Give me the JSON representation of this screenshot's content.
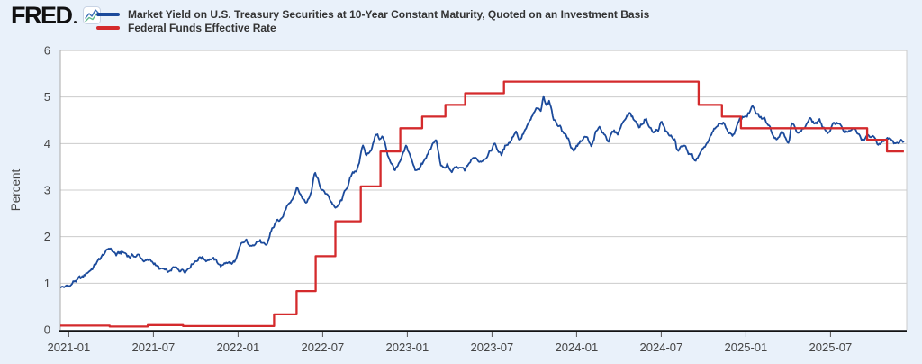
{
  "header": {
    "logo_text": "FRED",
    "logo_icon": "fred-sparkline-icon"
  },
  "chart_data": {
    "type": "line",
    "title": "",
    "xlabel": "",
    "ylabel": "Percent",
    "ylim": [
      0,
      6
    ],
    "grid": true,
    "legend_position": "top",
    "x_domain_months": [
      -0.6,
      59.4
    ],
    "x_domain_note": "months measured from 2021-01-01",
    "y_ticks": [
      0,
      1,
      2,
      3,
      4,
      5,
      6
    ],
    "x_ticks": [
      {
        "m": 0,
        "label": "2021-01"
      },
      {
        "m": 6,
        "label": "2021-07"
      },
      {
        "m": 12,
        "label": "2022-01"
      },
      {
        "m": 18,
        "label": "2022-07"
      },
      {
        "m": 24,
        "label": "2023-01"
      },
      {
        "m": 30,
        "label": "2023-07"
      },
      {
        "m": 36,
        "label": "2024-01"
      },
      {
        "m": 42,
        "label": "2024-07"
      },
      {
        "m": 48,
        "label": "2025-01"
      },
      {
        "m": 54,
        "label": "2025-07"
      }
    ],
    "series": [
      {
        "name": "Market Yield on U.S. Treasury Securities at 10-Year Constant Maturity, Quoted on an Investment Basis",
        "color": "#1b4a9b",
        "style": "daily",
        "anchors": [
          [
            -0.6,
            0.93
          ],
          [
            0,
            0.92
          ],
          [
            0.4,
            1.04
          ],
          [
            1,
            1.1
          ],
          [
            1.6,
            1.3
          ],
          [
            2,
            1.45
          ],
          [
            2.5,
            1.62
          ],
          [
            2.95,
            1.74
          ],
          [
            3.4,
            1.6
          ],
          [
            3.8,
            1.65
          ],
          [
            4.3,
            1.58
          ],
          [
            4.9,
            1.6
          ],
          [
            5.4,
            1.48
          ],
          [
            6,
            1.45
          ],
          [
            6.4,
            1.3
          ],
          [
            6.75,
            1.25
          ],
          [
            7.1,
            1.18
          ],
          [
            7.4,
            1.29
          ],
          [
            7.8,
            1.26
          ],
          [
            8.3,
            1.31
          ],
          [
            8.8,
            1.48
          ],
          [
            9.3,
            1.61
          ],
          [
            9.7,
            1.54
          ],
          [
            10.1,
            1.58
          ],
          [
            10.5,
            1.45
          ],
          [
            10.9,
            1.36
          ],
          [
            11.2,
            1.48
          ],
          [
            11.6,
            1.41
          ],
          [
            11.9,
            1.52
          ],
          [
            12.2,
            1.77
          ],
          [
            12.6,
            1.87
          ],
          [
            12.9,
            1.73
          ],
          [
            13.3,
            1.95
          ],
          [
            13.6,
            1.93
          ],
          [
            14,
            1.72
          ],
          [
            14.4,
            2.14
          ],
          [
            14.8,
            2.35
          ],
          [
            15.1,
            2.32
          ],
          [
            15.5,
            2.66
          ],
          [
            15.9,
            2.89
          ],
          [
            16.15,
            3.12
          ],
          [
            16.5,
            2.89
          ],
          [
            16.85,
            2.74
          ],
          [
            17.2,
            3.05
          ],
          [
            17.45,
            3.47
          ],
          [
            17.75,
            3.16
          ],
          [
            17.95,
            2.98
          ],
          [
            18.2,
            2.93
          ],
          [
            18.55,
            2.78
          ],
          [
            19,
            2.6
          ],
          [
            19.4,
            2.79
          ],
          [
            19.7,
            3.04
          ],
          [
            20,
            3.26
          ],
          [
            20.4,
            3.41
          ],
          [
            20.85,
            3.94
          ],
          [
            21.1,
            3.72
          ],
          [
            21.5,
            3.95
          ],
          [
            21.8,
            4.23
          ],
          [
            22.05,
            4.1
          ],
          [
            22.25,
            4.16
          ],
          [
            22.6,
            3.77
          ],
          [
            23.1,
            3.44
          ],
          [
            23.5,
            3.55
          ],
          [
            23.9,
            3.88
          ],
          [
            24.2,
            3.72
          ],
          [
            24.55,
            3.4
          ],
          [
            24.9,
            3.52
          ],
          [
            25.3,
            3.65
          ],
          [
            25.7,
            3.92
          ],
          [
            26.05,
            4.05
          ],
          [
            26.35,
            3.55
          ],
          [
            26.6,
            3.41
          ],
          [
            26.85,
            3.56
          ],
          [
            27.1,
            3.35
          ],
          [
            27.45,
            3.44
          ],
          [
            27.75,
            3.42
          ],
          [
            28.1,
            3.38
          ],
          [
            28.4,
            3.56
          ],
          [
            28.8,
            3.7
          ],
          [
            29.1,
            3.64
          ],
          [
            29.5,
            3.74
          ],
          [
            29.9,
            3.84
          ],
          [
            30.2,
            4.02
          ],
          [
            30.5,
            3.83
          ],
          [
            30.7,
            3.76
          ],
          [
            31,
            3.96
          ],
          [
            31.35,
            4.1
          ],
          [
            31.7,
            4.31
          ],
          [
            31.95,
            4.1
          ],
          [
            32.3,
            4.28
          ],
          [
            32.65,
            4.42
          ],
          [
            32.95,
            4.6
          ],
          [
            33.2,
            4.72
          ],
          [
            33.45,
            4.62
          ],
          [
            33.65,
            4.96
          ],
          [
            33.85,
            4.85
          ],
          [
            34.05,
            4.92
          ],
          [
            34.35,
            4.57
          ],
          [
            34.6,
            4.44
          ],
          [
            34.85,
            4.4
          ],
          [
            35.05,
            4.24
          ],
          [
            35.4,
            4.12
          ],
          [
            35.8,
            3.8
          ],
          [
            36.1,
            3.94
          ],
          [
            36.5,
            4.12
          ],
          [
            36.8,
            4.08
          ],
          [
            37.05,
            3.88
          ],
          [
            37.35,
            4.22
          ],
          [
            37.65,
            4.28
          ],
          [
            37.95,
            4.2
          ],
          [
            38.25,
            4.1
          ],
          [
            38.6,
            4.24
          ],
          [
            38.9,
            4.2
          ],
          [
            39.1,
            4.34
          ],
          [
            39.45,
            4.58
          ],
          [
            39.8,
            4.68
          ],
          [
            40.15,
            4.49
          ],
          [
            40.45,
            4.36
          ],
          [
            40.9,
            4.57
          ],
          [
            41.15,
            4.4
          ],
          [
            41.45,
            4.24
          ],
          [
            41.8,
            4.3
          ],
          [
            42,
            4.45
          ],
          [
            42.3,
            4.24
          ],
          [
            42.6,
            4.17
          ],
          [
            42.95,
            4.06
          ],
          [
            43.15,
            3.8
          ],
          [
            43.45,
            3.92
          ],
          [
            43.75,
            3.87
          ],
          [
            44.1,
            3.73
          ],
          [
            44.45,
            3.63
          ],
          [
            44.75,
            3.75
          ],
          [
            44.95,
            3.8
          ],
          [
            45.3,
            4.02
          ],
          [
            45.7,
            4.22
          ],
          [
            45.95,
            4.3
          ],
          [
            46.2,
            4.43
          ],
          [
            46.5,
            4.37
          ],
          [
            46.8,
            4.23
          ],
          [
            47.1,
            4.19
          ],
          [
            47.4,
            4.38
          ],
          [
            47.75,
            4.55
          ],
          [
            47.95,
            4.58
          ],
          [
            48.2,
            4.67
          ],
          [
            48.45,
            4.78
          ],
          [
            48.7,
            4.62
          ],
          [
            49,
            4.53
          ],
          [
            49.3,
            4.5
          ],
          [
            49.6,
            4.42
          ],
          [
            49.95,
            4.22
          ],
          [
            50.2,
            4.17
          ],
          [
            50.55,
            4.3
          ],
          [
            50.8,
            4.22
          ],
          [
            51.05,
            4.04
          ],
          [
            51.25,
            4.45
          ],
          [
            51.5,
            4.3
          ],
          [
            51.8,
            4.26
          ],
          [
            52.1,
            4.33
          ],
          [
            52.5,
            4.53
          ],
          [
            52.85,
            4.42
          ],
          [
            53.2,
            4.46
          ],
          [
            53.55,
            4.32
          ],
          [
            53.9,
            4.25
          ],
          [
            54.2,
            4.38
          ],
          [
            54.55,
            4.46
          ],
          [
            54.85,
            4.38
          ],
          [
            55.05,
            4.23
          ],
          [
            55.4,
            4.3
          ],
          [
            55.75,
            4.26
          ],
          [
            56.1,
            4.1
          ],
          [
            56.4,
            4.05
          ],
          [
            56.7,
            4.14
          ],
          [
            57,
            4.1
          ],
          [
            57.35,
            3.99
          ],
          [
            57.7,
            4.02
          ],
          [
            58,
            4.1
          ],
          [
            58.3,
            4.13
          ],
          [
            58.55,
            4.05
          ],
          [
            58.8,
            4.08
          ],
          [
            59.2,
            4.08
          ]
        ]
      },
      {
        "name": "Federal Funds Effective Rate",
        "color": "#d42a2c",
        "style": "step",
        "steps": [
          [
            -0.6,
            0.09
          ],
          [
            2.9,
            0.07
          ],
          [
            5.6,
            0.1
          ],
          [
            8.1,
            0.08
          ],
          [
            14.55,
            0.33
          ],
          [
            16.15,
            0.83
          ],
          [
            17.5,
            1.58
          ],
          [
            18.9,
            2.33
          ],
          [
            20.7,
            3.08
          ],
          [
            22.1,
            3.83
          ],
          [
            23.5,
            4.33
          ],
          [
            25.05,
            4.58
          ],
          [
            26.7,
            4.83
          ],
          [
            28.1,
            5.08
          ],
          [
            30.85,
            5.33
          ],
          [
            44.65,
            4.83
          ],
          [
            46.3,
            4.58
          ],
          [
            47.65,
            4.33
          ],
          [
            56.6,
            4.08
          ],
          [
            58.0,
            3.83
          ]
        ],
        "end_m": 59.2
      }
    ]
  }
}
